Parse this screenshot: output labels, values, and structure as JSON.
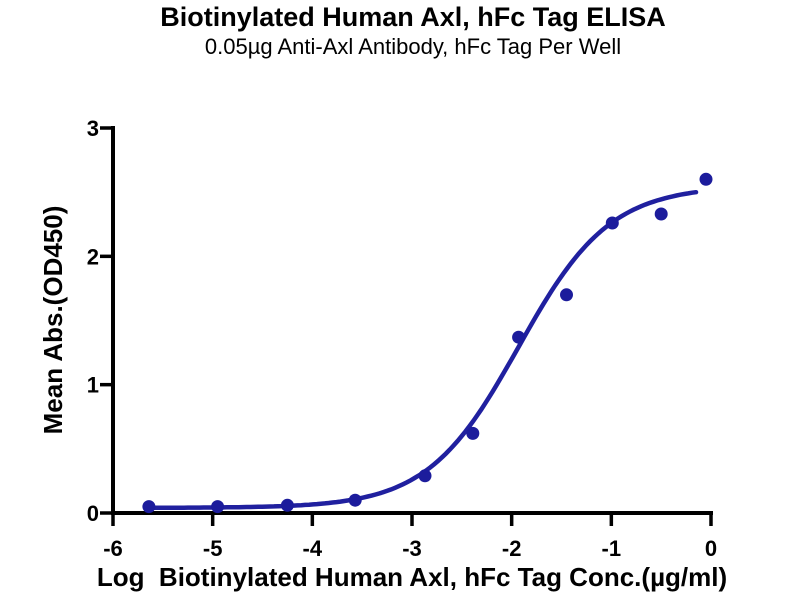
{
  "header": {
    "title": "Biotinylated Human Axl, hFc Tag ELISA",
    "subtitle": "0.05µg Anti-Axl Antibody, hFc Tag Per Well"
  },
  "chart_data": {
    "type": "scatter",
    "title": "Biotinylated Human Axl, hFc Tag ELISA",
    "subtitle": "0.05µg Anti-Axl Antibody, hFc Tag Per Well",
    "xlabel": "Log  Biotinylated Human Axl, hFc Tag Conc.(µg/ml)",
    "ylabel": "Mean Abs.(OD450)",
    "xlim": [
      -6,
      0
    ],
    "ylim": [
      0,
      3
    ],
    "x_ticks": [
      -6,
      -5,
      -4,
      -3,
      -2,
      -1,
      0
    ],
    "y_ticks": [
      0,
      1,
      2,
      3
    ],
    "grid": false,
    "legend": false,
    "points": [
      {
        "x": -5.64,
        "y": 0.05
      },
      {
        "x": -4.95,
        "y": 0.05
      },
      {
        "x": -4.25,
        "y": 0.06
      },
      {
        "x": -3.57,
        "y": 0.1
      },
      {
        "x": -2.87,
        "y": 0.29
      },
      {
        "x": -2.39,
        "y": 0.62
      },
      {
        "x": -1.93,
        "y": 1.37
      },
      {
        "x": -1.45,
        "y": 1.7
      },
      {
        "x": -0.99,
        "y": 2.26
      },
      {
        "x": -0.5,
        "y": 2.33
      },
      {
        "x": -0.05,
        "y": 2.6
      }
    ],
    "fit_curve": {
      "model": "4PL",
      "bottom": 0.04,
      "top": 2.55,
      "log_ec50": -1.93,
      "hill_slope": 0.95,
      "x_start": -5.64,
      "x_end": -0.15
    },
    "colors": {
      "marker": "#1c1c9c",
      "curve": "#20209f",
      "axis": "#000000",
      "text": "#000000",
      "background": "#ffffff"
    }
  }
}
